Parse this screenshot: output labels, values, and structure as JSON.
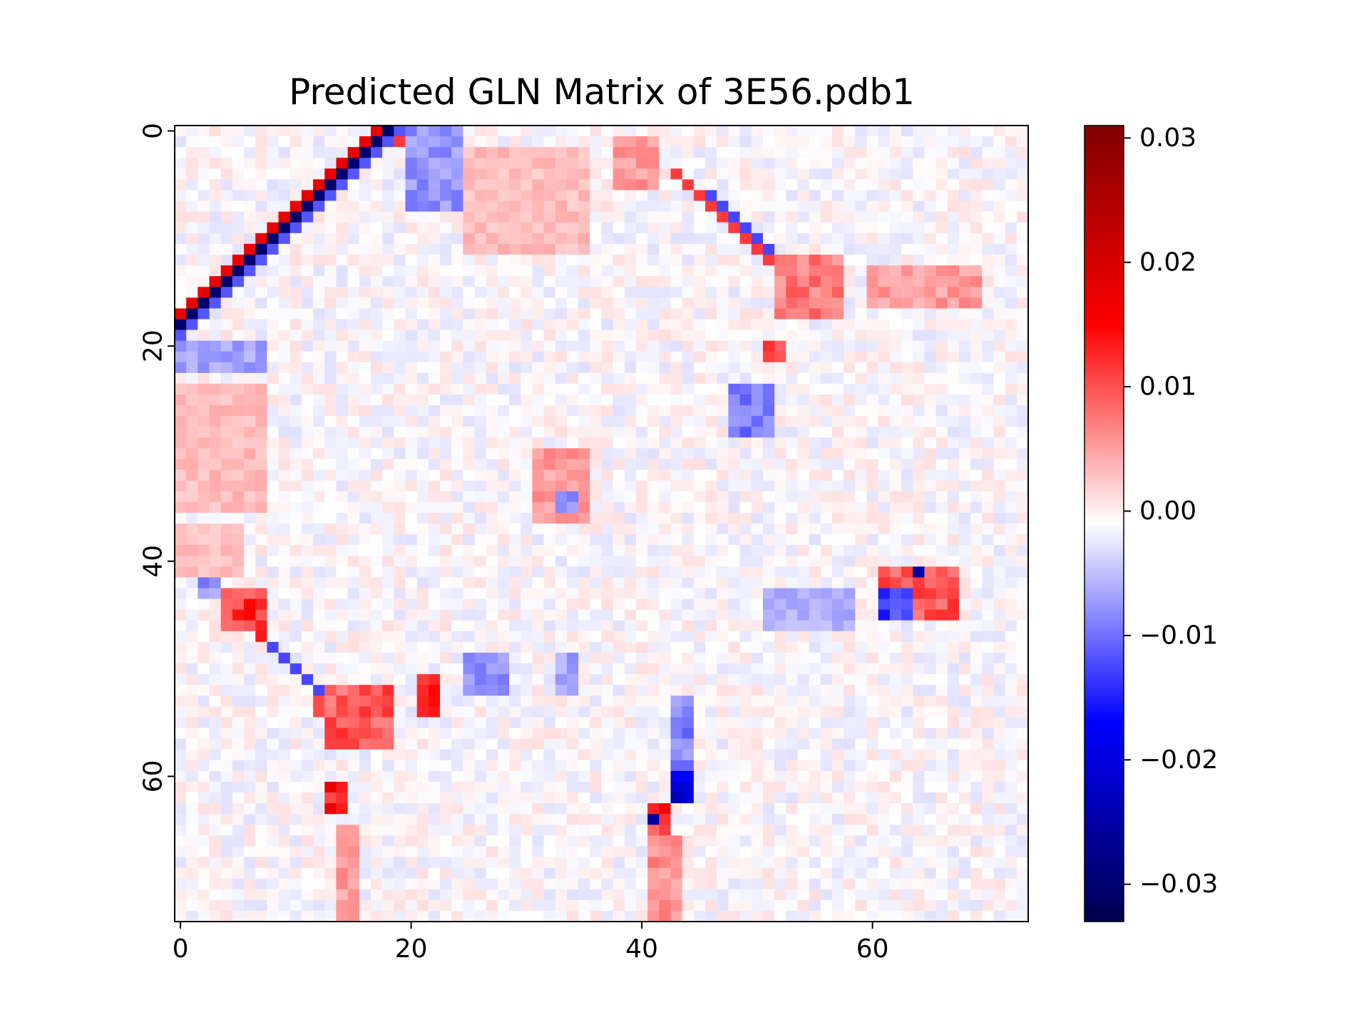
{
  "chart_data": {
    "type": "heatmap",
    "title": "Predicted GLN Matrix of 3E56.pdb1",
    "xlabel": "",
    "ylabel": "",
    "size": [
      74,
      74
    ],
    "xlim": [
      -0.5,
      73.5
    ],
    "ylim": [
      73.5,
      -0.5
    ],
    "x_ticks": [
      0,
      20,
      40,
      60
    ],
    "y_ticks": [
      0,
      20,
      40,
      60
    ],
    "colormap": "seismic",
    "colorbar": {
      "vmin": -0.033,
      "vmax": 0.031,
      "ticks": [
        -0.03,
        -0.02,
        -0.01,
        0.0,
        0.01,
        0.02,
        0.03
      ],
      "tick_labels": [
        "−0.03",
        "−0.02",
        "−0.01",
        "0.00",
        "0.01",
        "0.02",
        "0.03"
      ]
    },
    "features": [
      {
        "type": "band",
        "from": [
          18,
          0
        ],
        "to": [
          0,
          18
        ],
        "w": 1.1,
        "v": -0.03
      },
      {
        "type": "band",
        "from": [
          17,
          0
        ],
        "to": [
          0,
          17
        ],
        "w": 0.9,
        "v": 0.018
      },
      {
        "type": "band",
        "from": [
          19,
          0
        ],
        "to": [
          0,
          19
        ],
        "w": 1.0,
        "v": -0.011
      },
      {
        "type": "band",
        "from": [
          19,
          1
        ],
        "to": [
          20,
          2
        ],
        "w": 1.2,
        "v": 0.012
      },
      {
        "type": "band",
        "from": [
          43,
          4
        ],
        "to": [
          53,
          14
        ],
        "w": 1.0,
        "v": 0.012
      },
      {
        "type": "band",
        "from": [
          46,
          6
        ],
        "to": [
          51,
          11
        ],
        "w": 0.7,
        "v": -0.012
      },
      {
        "type": "band",
        "from": [
          6,
          46
        ],
        "to": [
          12,
          52
        ],
        "w": 0.9,
        "v": -0.012
      },
      {
        "type": "band",
        "from": [
          4,
          44
        ],
        "to": [
          7,
          47
        ],
        "w": 1.0,
        "v": 0.014
      },
      {
        "type": "band",
        "from": [
          12,
          53
        ],
        "to": [
          16,
          57
        ],
        "w": 1.5,
        "v": 0.011
      },
      {
        "type": "rect",
        "x": [
          52,
          58
        ],
        "y": [
          12,
          18
        ],
        "v": 0.008
      },
      {
        "type": "rect",
        "x": [
          60,
          70
        ],
        "y": [
          13,
          17
        ],
        "v": 0.006
      },
      {
        "type": "rect",
        "x": [
          48,
          52
        ],
        "y": [
          24,
          29
        ],
        "v": -0.009
      },
      {
        "type": "rect",
        "x": [
          51,
          53
        ],
        "y": [
          20,
          22
        ],
        "v": 0.01
      },
      {
        "type": "rect",
        "x": [
          13,
          19
        ],
        "y": [
          52,
          58
        ],
        "v": 0.01
      },
      {
        "type": "rect",
        "x": [
          13,
          15
        ],
        "y": [
          61,
          64
        ],
        "v": 0.014
      },
      {
        "type": "rect",
        "x": [
          14,
          16
        ],
        "y": [
          65,
          74
        ],
        "v": 0.006
      },
      {
        "type": "rect",
        "x": [
          43,
          45
        ],
        "y": [
          53,
          60
        ],
        "v": -0.008
      },
      {
        "type": "rect",
        "x": [
          43,
          45
        ],
        "y": [
          60,
          63
        ],
        "v": -0.02
      },
      {
        "type": "rect",
        "x": [
          41,
          43
        ],
        "y": [
          63,
          66
        ],
        "v": 0.013
      },
      {
        "type": "point",
        "x": 41,
        "y": 64,
        "v": -0.025
      },
      {
        "type": "rect",
        "x": [
          41,
          44
        ],
        "y": [
          66,
          74
        ],
        "v": 0.007
      },
      {
        "type": "rect",
        "x": [
          61,
          68
        ],
        "y": [
          41,
          46
        ],
        "v": 0.01
      },
      {
        "type": "rect",
        "x": [
          61,
          64
        ],
        "y": [
          43,
          46
        ],
        "v": -0.012
      },
      {
        "type": "point",
        "x": 64,
        "y": 41,
        "v": -0.025
      },
      {
        "type": "rect",
        "x": [
          51,
          59
        ],
        "y": [
          43,
          47
        ],
        "v": -0.005
      },
      {
        "type": "rect",
        "x": [
          31,
          36
        ],
        "y": [
          30,
          37
        ],
        "v": 0.006
      },
      {
        "type": "rect",
        "x": [
          33,
          35
        ],
        "y": [
          34,
          36
        ],
        "v": -0.007
      },
      {
        "type": "rect",
        "x": [
          25,
          29
        ],
        "y": [
          49,
          53
        ],
        "v": -0.007
      },
      {
        "type": "rect",
        "x": [
          0,
          8
        ],
        "y": [
          24,
          36
        ],
        "v": 0.004
      },
      {
        "type": "rect",
        "x": [
          0,
          6
        ],
        "y": [
          37,
          42
        ],
        "v": 0.004
      },
      {
        "type": "rect",
        "x": [
          0,
          8
        ],
        "y": [
          20,
          23
        ],
        "v": -0.006
      },
      {
        "type": "rect",
        "x": [
          2,
          4
        ],
        "y": [
          42,
          44
        ],
        "v": -0.007
      },
      {
        "type": "rect",
        "x": [
          4,
          8
        ],
        "y": [
          43,
          47
        ],
        "v": 0.012
      },
      {
        "type": "rect",
        "x": [
          20,
          25
        ],
        "y": [
          0,
          8
        ],
        "v": -0.007
      },
      {
        "type": "rect",
        "x": [
          25,
          36
        ],
        "y": [
          2,
          12
        ],
        "v": 0.004
      },
      {
        "type": "rect",
        "x": [
          38,
          42
        ],
        "y": [
          1,
          6
        ],
        "v": 0.006
      },
      {
        "type": "rect",
        "x": [
          21,
          23
        ],
        "y": [
          51,
          55
        ],
        "v": 0.012
      },
      {
        "type": "rect",
        "x": [
          33,
          35
        ],
        "y": [
          49,
          53
        ],
        "v": -0.006
      }
    ]
  }
}
